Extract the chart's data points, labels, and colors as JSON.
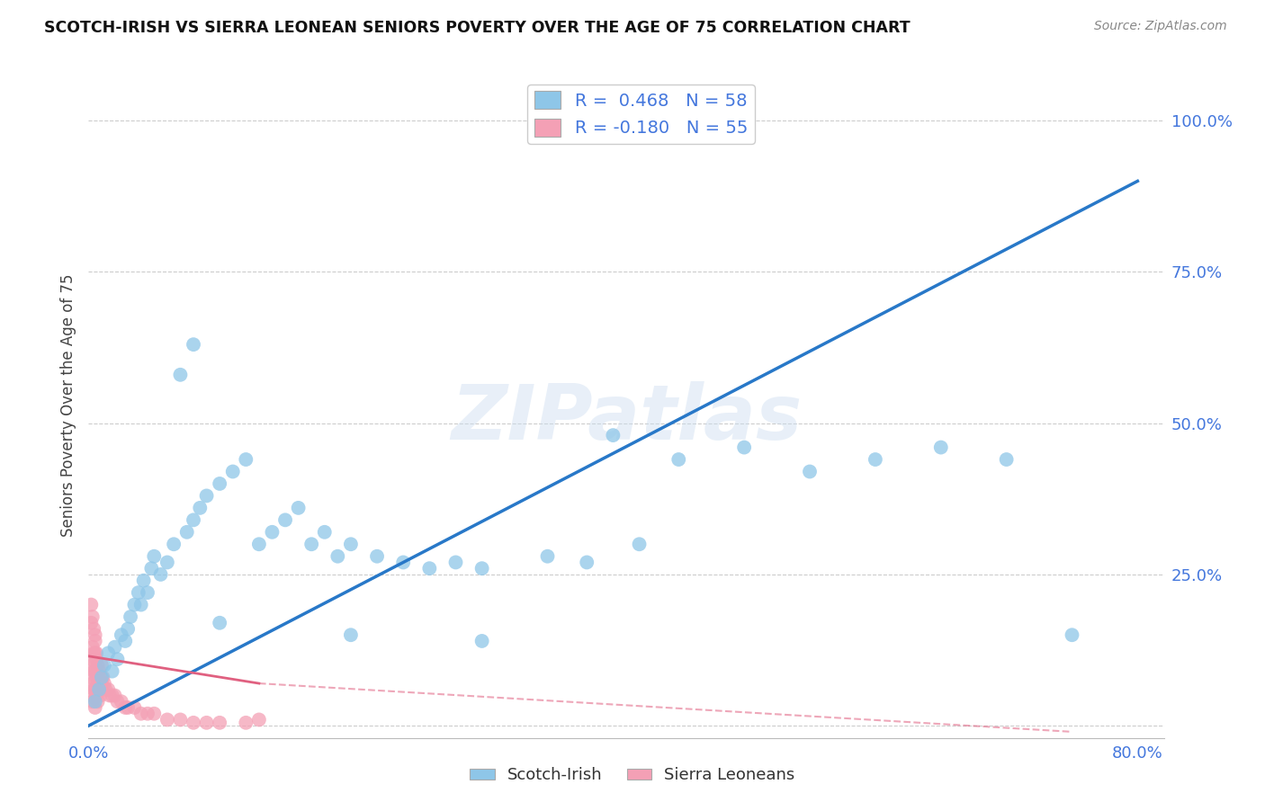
{
  "title": "SCOTCH-IRISH VS SIERRA LEONEAN SENIORS POVERTY OVER THE AGE OF 75 CORRELATION CHART",
  "source": "Source: ZipAtlas.com",
  "ylabel_label": "Seniors Poverty Over the Age of 75",
  "x_ticks": [
    0.0,
    0.1,
    0.2,
    0.3,
    0.4,
    0.5,
    0.6,
    0.7,
    0.8
  ],
  "x_tick_labels": [
    "0.0%",
    "",
    "",
    "",
    "",
    "",
    "",
    "",
    "80.0%"
  ],
  "y_ticks": [
    0.0,
    0.25,
    0.5,
    0.75,
    1.0
  ],
  "y_tick_labels": [
    "",
    "25.0%",
    "50.0%",
    "75.0%",
    "100.0%"
  ],
  "xlim": [
    0.0,
    0.82
  ],
  "ylim": [
    -0.02,
    1.08
  ],
  "scotch_irish_R": 0.468,
  "scotch_irish_N": 58,
  "sierra_leonean_R": -0.18,
  "sierra_leonean_N": 55,
  "scotch_irish_color": "#8ec6e8",
  "sierra_leonean_color": "#f4a0b5",
  "scotch_irish_line_color": "#2878c8",
  "sierra_leonean_line_color": "#e06080",
  "scotch_irish_x": [
    0.005,
    0.008,
    0.01,
    0.012,
    0.015,
    0.018,
    0.02,
    0.022,
    0.025,
    0.028,
    0.03,
    0.032,
    0.035,
    0.038,
    0.04,
    0.042,
    0.045,
    0.048,
    0.05,
    0.055,
    0.06,
    0.065,
    0.07,
    0.075,
    0.08,
    0.085,
    0.09,
    0.1,
    0.11,
    0.12,
    0.13,
    0.14,
    0.15,
    0.16,
    0.17,
    0.18,
    0.19,
    0.2,
    0.22,
    0.24,
    0.26,
    0.28,
    0.3,
    0.35,
    0.4,
    0.45,
    0.5,
    0.55,
    0.6,
    0.65,
    0.7,
    0.75,
    0.38,
    0.42,
    0.3,
    0.2,
    0.1,
    0.08
  ],
  "scotch_irish_y": [
    0.04,
    0.06,
    0.08,
    0.1,
    0.12,
    0.09,
    0.13,
    0.11,
    0.15,
    0.14,
    0.16,
    0.18,
    0.2,
    0.22,
    0.2,
    0.24,
    0.22,
    0.26,
    0.28,
    0.25,
    0.27,
    0.3,
    0.58,
    0.32,
    0.34,
    0.36,
    0.38,
    0.4,
    0.42,
    0.44,
    0.3,
    0.32,
    0.34,
    0.36,
    0.3,
    0.32,
    0.28,
    0.3,
    0.28,
    0.27,
    0.26,
    0.27,
    0.26,
    0.28,
    0.48,
    0.44,
    0.46,
    0.42,
    0.44,
    0.46,
    0.44,
    0.15,
    0.27,
    0.3,
    0.14,
    0.15,
    0.17,
    0.63
  ],
  "sierra_leonean_x": [
    0.002,
    0.002,
    0.002,
    0.003,
    0.003,
    0.003,
    0.003,
    0.004,
    0.004,
    0.004,
    0.005,
    0.005,
    0.005,
    0.005,
    0.005,
    0.006,
    0.006,
    0.006,
    0.007,
    0.007,
    0.007,
    0.008,
    0.008,
    0.009,
    0.009,
    0.01,
    0.01,
    0.011,
    0.012,
    0.013,
    0.015,
    0.016,
    0.018,
    0.02,
    0.022,
    0.025,
    0.028,
    0.03,
    0.035,
    0.04,
    0.045,
    0.05,
    0.06,
    0.07,
    0.08,
    0.09,
    0.1,
    0.12,
    0.13,
    0.002,
    0.002,
    0.003,
    0.004,
    0.005,
    0.006
  ],
  "sierra_leonean_y": [
    0.05,
    0.08,
    0.11,
    0.04,
    0.07,
    0.1,
    0.13,
    0.06,
    0.09,
    0.12,
    0.03,
    0.06,
    0.09,
    0.12,
    0.15,
    0.05,
    0.08,
    0.11,
    0.04,
    0.07,
    0.1,
    0.06,
    0.09,
    0.05,
    0.08,
    0.07,
    0.1,
    0.08,
    0.07,
    0.06,
    0.06,
    0.05,
    0.05,
    0.05,
    0.04,
    0.04,
    0.03,
    0.03,
    0.03,
    0.02,
    0.02,
    0.02,
    0.01,
    0.01,
    0.005,
    0.005,
    0.005,
    0.005,
    0.01,
    0.17,
    0.2,
    0.18,
    0.16,
    0.14,
    0.12
  ],
  "si_line_x0": 0.0,
  "si_line_y0": 0.0,
  "si_line_x1": 0.8,
  "si_line_y1": 0.9,
  "sl_line_solid_x0": 0.0,
  "sl_line_solid_y0": 0.115,
  "sl_line_solid_x1": 0.13,
  "sl_line_solid_y1": 0.07,
  "sl_line_dash_x0": 0.13,
  "sl_line_dash_y0": 0.07,
  "sl_line_dash_x1": 0.75,
  "sl_line_dash_y1": -0.01,
  "watermark": "ZIPatlas",
  "background_color": "#ffffff",
  "grid_color": "#cccccc",
  "tick_color": "#4477dd",
  "legend_scotch": "Scotch-Irish",
  "legend_sierra": "Sierra Leoneans"
}
